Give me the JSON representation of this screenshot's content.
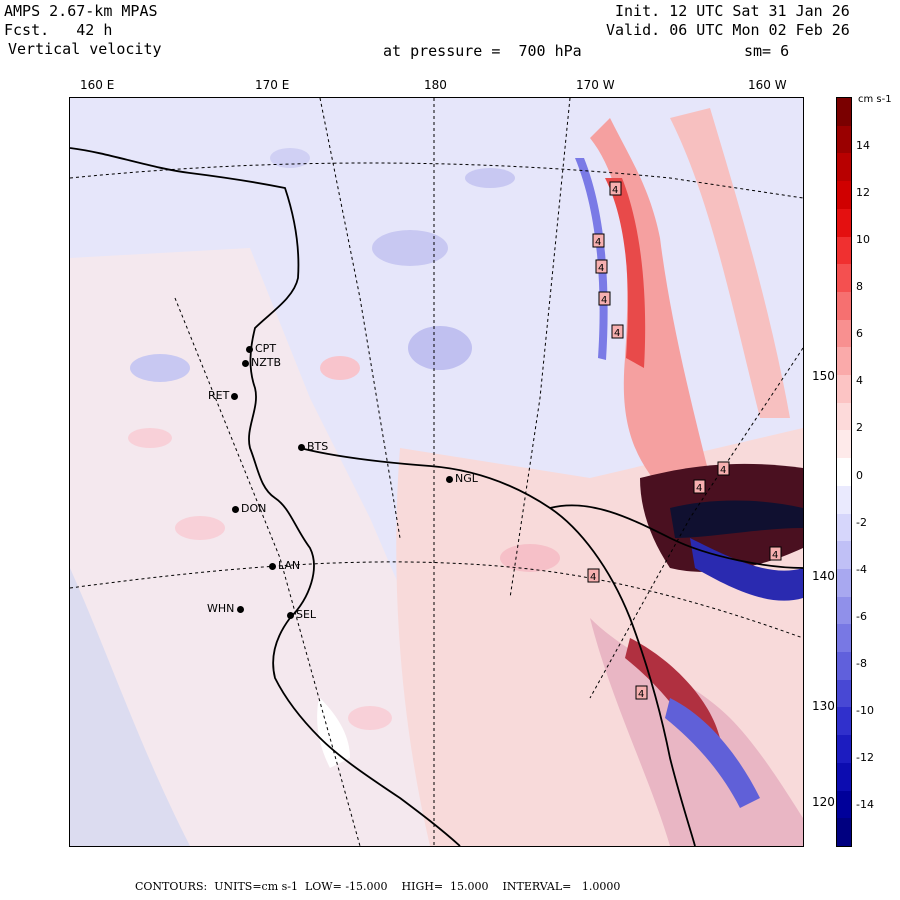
{
  "header": {
    "model": "AMPS 2.67-km MPAS",
    "fcst": "Fcst.   42 h",
    "field": "Vertical velocity",
    "init": "Init. 12 UTC Sat 31 Jan 26",
    "valid": "Valid. 06 UTC Mon 02 Feb 26",
    "pressure": "at pressure =  700 hPa",
    "smooth": "sm= 6"
  },
  "lon_labels": [
    "160 E",
    "170 E",
    "180",
    "170 W",
    "160 W"
  ],
  "lat_labels": [
    "150 W",
    "140 W",
    "130 W",
    "120 W"
  ],
  "stations": [
    "CPT",
    "NZTB",
    "RET",
    "BTS",
    "NGL",
    "DON",
    "LAN",
    "WHN",
    "SEL"
  ],
  "colorbar": {
    "unit": "cm s-1",
    "ticks": [
      "14",
      "12",
      "10",
      "8",
      "6",
      "4",
      "2",
      "0",
      "-2",
      "-4",
      "-6",
      "-8",
      "-10",
      "-12",
      "-14"
    ],
    "colors_top_to_bottom": [
      "#7a0000",
      "#9a0000",
      "#b80000",
      "#d00000",
      "#e41010",
      "#f03030",
      "#f45050",
      "#f67070",
      "#f89090",
      "#faaaaa",
      "#fcc4c4",
      "#fddada",
      "#feeaea",
      "#ffffff",
      "#eaeafe",
      "#d6d6fb",
      "#c0c0f6",
      "#a8a8f0",
      "#9090ea",
      "#7878e4",
      "#6060dc",
      "#4848d4",
      "#3030cc",
      "#1c1cc0",
      "#0c0cb0",
      "#00009a",
      "#000080"
    ]
  },
  "box_labels": [
    "4",
    "4",
    "4",
    "4",
    "4",
    "4",
    "4",
    "4",
    "4",
    "4"
  ],
  "footer": {
    "text": "CONTOURS:  UNITS=cm s-1  LOW= -15.000    HIGH=  15.000    INTERVAL=   1.0000"
  }
}
